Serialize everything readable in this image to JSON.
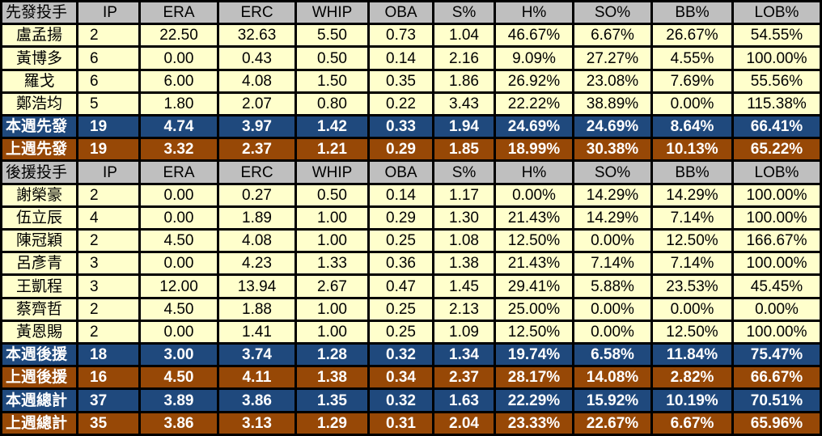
{
  "columns": [
    "IP",
    "ERA",
    "ERC",
    "WHIP",
    "OBA",
    "S%",
    "H%",
    "SO%",
    "BB%",
    "LOB%"
  ],
  "starters": {
    "header_label": "先發投手",
    "players": [
      {
        "name": "盧孟揚",
        "stats": [
          "2",
          "22.50",
          "32.63",
          "5.50",
          "0.73",
          "1.04",
          "46.67%",
          "6.67%",
          "26.67%",
          "54.55%"
        ]
      },
      {
        "name": "黃博多",
        "stats": [
          "6",
          "0.00",
          "0.43",
          "0.50",
          "0.14",
          "2.16",
          "9.09%",
          "27.27%",
          "4.55%",
          "100.00%"
        ]
      },
      {
        "name": "羅戈",
        "stats": [
          "6",
          "6.00",
          "4.08",
          "1.50",
          "0.35",
          "1.86",
          "26.92%",
          "23.08%",
          "7.69%",
          "55.56%"
        ]
      },
      {
        "name": "鄭浩均",
        "stats": [
          "5",
          "1.80",
          "2.07",
          "0.80",
          "0.22",
          "3.43",
          "22.22%",
          "38.89%",
          "0.00%",
          "115.38%"
        ]
      }
    ],
    "this_week": {
      "label": "本週先發",
      "stats": [
        "19",
        "4.74",
        "3.97",
        "1.42",
        "0.33",
        "1.94",
        "24.69%",
        "24.69%",
        "8.64%",
        "66.41%"
      ]
    },
    "last_week": {
      "label": "上週先發",
      "stats": [
        "19",
        "3.32",
        "2.37",
        "1.21",
        "0.29",
        "1.85",
        "18.99%",
        "30.38%",
        "10.13%",
        "65.22%"
      ]
    }
  },
  "relievers": {
    "header_label": "後援投手",
    "players": [
      {
        "name": "謝榮豪",
        "stats": [
          "2",
          "0.00",
          "0.27",
          "0.50",
          "0.14",
          "1.17",
          "0.00%",
          "14.29%",
          "14.29%",
          "100.00%"
        ]
      },
      {
        "name": "伍立辰",
        "stats": [
          "4",
          "0.00",
          "1.89",
          "1.00",
          "0.29",
          "1.30",
          "21.43%",
          "14.29%",
          "7.14%",
          "100.00%"
        ]
      },
      {
        "name": "陳冠穎",
        "stats": [
          "2",
          "4.50",
          "4.08",
          "1.00",
          "0.25",
          "1.08",
          "12.50%",
          "0.00%",
          "12.50%",
          "166.67%"
        ]
      },
      {
        "name": "呂彥青",
        "stats": [
          "3",
          "0.00",
          "4.23",
          "1.33",
          "0.36",
          "1.38",
          "21.43%",
          "7.14%",
          "7.14%",
          "100.00%"
        ]
      },
      {
        "name": "王凱程",
        "stats": [
          "3",
          "12.00",
          "13.94",
          "2.67",
          "0.47",
          "1.45",
          "29.41%",
          "5.88%",
          "23.53%",
          "45.45%"
        ]
      },
      {
        "name": "蔡齊哲",
        "stats": [
          "2",
          "4.50",
          "1.88",
          "1.00",
          "0.25",
          "2.13",
          "25.00%",
          "0.00%",
          "0.00%",
          "0.00%"
        ]
      },
      {
        "name": "黃恩賜",
        "stats": [
          "2",
          "0.00",
          "1.41",
          "1.00",
          "0.25",
          "1.09",
          "12.50%",
          "0.00%",
          "12.50%",
          "100.00%"
        ]
      }
    ],
    "this_week": {
      "label": "本週後援",
      "stats": [
        "18",
        "3.00",
        "3.74",
        "1.28",
        "0.32",
        "1.34",
        "19.74%",
        "6.58%",
        "11.84%",
        "75.47%"
      ]
    },
    "last_week": {
      "label": "上週後援",
      "stats": [
        "16",
        "4.50",
        "4.11",
        "1.38",
        "0.34",
        "2.37",
        "28.17%",
        "14.08%",
        "2.82%",
        "66.67%"
      ]
    }
  },
  "totals": {
    "this_week": {
      "label": "本週總計",
      "stats": [
        "37",
        "3.89",
        "3.86",
        "1.35",
        "0.32",
        "1.63",
        "22.29%",
        "15.92%",
        "10.19%",
        "70.51%"
      ]
    },
    "last_week": {
      "label": "上週總計",
      "stats": [
        "35",
        "3.86",
        "3.13",
        "1.29",
        "0.31",
        "2.04",
        "23.33%",
        "22.67%",
        "6.67%",
        "65.96%"
      ]
    }
  },
  "colors": {
    "header_bg": "#bfbfbf",
    "player_bg": "#ffffcc",
    "this_week_bg": "#1f497d",
    "last_week_bg": "#974806"
  }
}
